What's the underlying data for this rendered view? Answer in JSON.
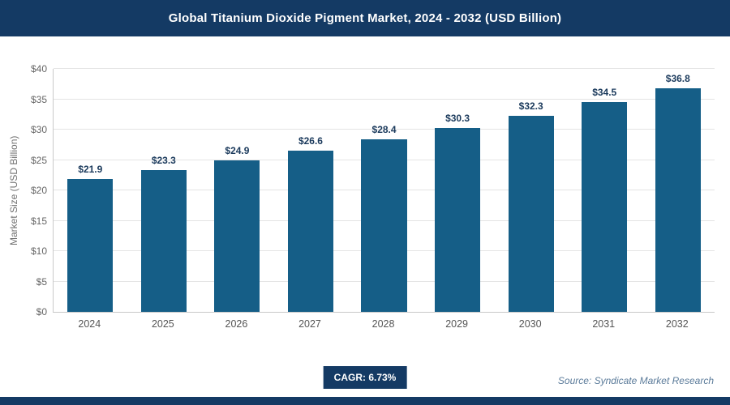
{
  "header": {
    "title": "Global Titanium Dioxide Pigment Market, 2024 - 2032 (USD Billion)"
  },
  "chart_data": {
    "type": "bar",
    "title": "Global Titanium Dioxide Pigment Market, 2024 - 2032 (USD Billion)",
    "categories": [
      "2024",
      "2025",
      "2026",
      "2027",
      "2028",
      "2029",
      "2030",
      "2031",
      "2032"
    ],
    "values": [
      21.9,
      23.3,
      24.9,
      26.6,
      28.4,
      30.3,
      32.3,
      34.5,
      36.8
    ],
    "value_labels": [
      "$21.9",
      "$23.3",
      "$24.9",
      "$26.6",
      "$28.4",
      "$30.3",
      "$32.3",
      "$34.5",
      "$36.8"
    ],
    "xlabel": "",
    "ylabel": "Market Size (USD Billion)",
    "ylim": [
      0,
      40
    ],
    "ytick_step": 5,
    "ytick_labels": [
      "$0",
      "$5",
      "$10",
      "$15",
      "$20",
      "$25",
      "$30",
      "$35",
      "$40"
    ],
    "grid": true,
    "legend": false
  },
  "footer": {
    "cagr_label": "CAGR: 6.73%",
    "source": "Source: Syndicate Market Research"
  },
  "colors": {
    "header_bg": "#143A64",
    "bar": "#155E87",
    "value_label_text": "#1B3A5C",
    "gridline": "#E4E4E4",
    "axis_line": "#C9C9C9",
    "tick_text": "#666666",
    "badge_bg": "#143A64",
    "source_text": "#5B7B9A"
  }
}
